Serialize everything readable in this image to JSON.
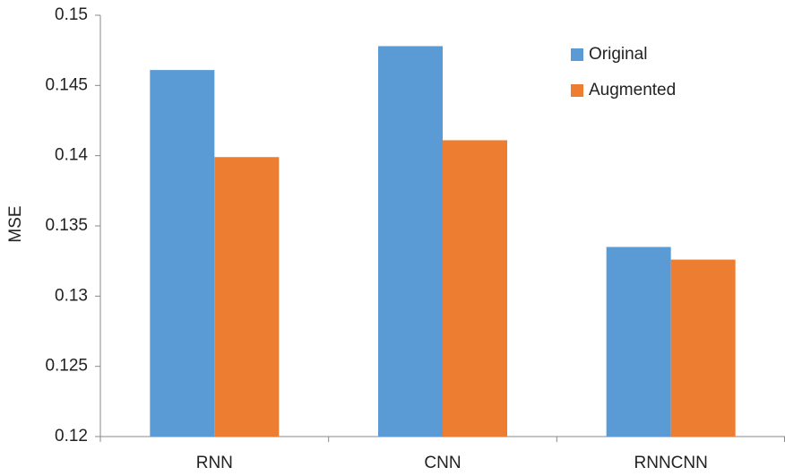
{
  "chart_data": {
    "type": "bar",
    "y_label": "MSE",
    "categories": [
      "RNN",
      "CNN",
      "RNNCNN"
    ],
    "series": [
      {
        "name": "Original",
        "color": "#5b9bd5",
        "values": [
          0.1461,
          0.1478,
          0.1335
        ]
      },
      {
        "name": "Augmented",
        "color": "#ed7d31",
        "values": [
          0.1399,
          0.1411,
          0.1326
        ]
      }
    ],
    "ylim": [
      0.12,
      0.15
    ],
    "yticks": [
      0.12,
      0.125,
      0.13,
      0.135,
      0.14,
      0.145,
      0.15
    ],
    "grid": false,
    "legend": "upper right"
  }
}
